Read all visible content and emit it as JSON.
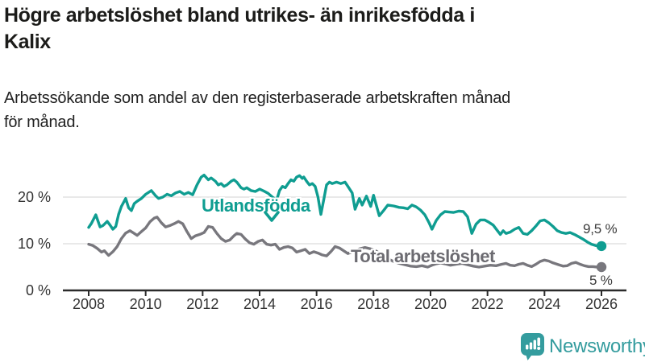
{
  "header": {
    "title_line1": "Högre arbetslöshet bland utrikes- än inrikesfödda i",
    "title_line2": "Kalix",
    "subtitle_line1": "Arbetssökande som andel av den registerbaserade arbetskraften månad",
    "subtitle_line2": "för månad."
  },
  "chart_data": {
    "type": "line",
    "title": "Högre arbetslöshet bland utrikes- än inrikesfödda i Kalix",
    "subtitle": "Arbetssökande som andel av den registerbaserade arbetskraften månad för månad.",
    "xlabel": "",
    "ylabel": "",
    "xlim": [
      2007.1,
      2026.9
    ],
    "ylim": [
      0,
      27
    ],
    "grid": "horizontal-y",
    "legend_position": "inline-labels",
    "x_ticks": [
      2008,
      2010,
      2012,
      2014,
      2016,
      2018,
      2020,
      2022,
      2024,
      2026
    ],
    "y_ticks": [
      0,
      10,
      20
    ],
    "y_tick_labels": [
      "0 %",
      "10 %",
      "20 %"
    ],
    "colors": {
      "utlandsfodda": "#0f9d91",
      "total": "#78777d",
      "gridline": "#e2e2e2",
      "axis": "#2b2b2b",
      "tick_text": "#333333"
    },
    "series": [
      {
        "name": "Utlandsfödda",
        "color": "#0f9d91",
        "end_label": "9,5 %",
        "end_value": 9.5,
        "points": [
          [
            2008.0,
            13.5
          ],
          [
            2008.1,
            14.4
          ],
          [
            2008.25,
            16.2
          ],
          [
            2008.4,
            13.6
          ],
          [
            2008.5,
            13.9
          ],
          [
            2008.65,
            14.8
          ],
          [
            2008.75,
            14.0
          ],
          [
            2008.85,
            13.1
          ],
          [
            2008.95,
            13.7
          ],
          [
            2009.05,
            16.3
          ],
          [
            2009.15,
            18.0
          ],
          [
            2009.3,
            19.7
          ],
          [
            2009.4,
            17.7
          ],
          [
            2009.5,
            17.1
          ],
          [
            2009.6,
            18.6
          ],
          [
            2009.7,
            19.1
          ],
          [
            2009.85,
            19.7
          ],
          [
            2010.0,
            20.6
          ],
          [
            2010.2,
            21.4
          ],
          [
            2010.35,
            20.3
          ],
          [
            2010.45,
            19.7
          ],
          [
            2010.6,
            20.0
          ],
          [
            2010.75,
            20.6
          ],
          [
            2010.9,
            20.3
          ],
          [
            2011.05,
            20.9
          ],
          [
            2011.2,
            21.2
          ],
          [
            2011.35,
            20.6
          ],
          [
            2011.5,
            21.0
          ],
          [
            2011.65,
            20.5
          ],
          [
            2011.8,
            22.6
          ],
          [
            2011.95,
            24.3
          ],
          [
            2012.05,
            24.7
          ],
          [
            2012.2,
            23.7
          ],
          [
            2012.3,
            24.1
          ],
          [
            2012.45,
            23.4
          ],
          [
            2012.55,
            22.6
          ],
          [
            2012.65,
            22.9
          ],
          [
            2012.75,
            22.3
          ],
          [
            2012.85,
            22.6
          ],
          [
            2013.0,
            23.4
          ],
          [
            2013.1,
            23.7
          ],
          [
            2013.2,
            23.2
          ],
          [
            2013.35,
            22.0
          ],
          [
            2013.45,
            21.7
          ],
          [
            2013.55,
            22.0
          ],
          [
            2013.7,
            21.4
          ],
          [
            2013.85,
            21.2
          ],
          [
            2014.0,
            21.7
          ],
          [
            2014.15,
            21.3
          ],
          [
            2014.3,
            20.8
          ],
          [
            2014.45,
            20.0
          ],
          [
            2014.6,
            19.4
          ],
          [
            2014.7,
            21.4
          ],
          [
            2014.8,
            22.3
          ],
          [
            2014.9,
            22.0
          ],
          [
            2015.0,
            22.9
          ],
          [
            2015.1,
            23.7
          ],
          [
            2015.2,
            23.4
          ],
          [
            2015.3,
            24.3
          ],
          [
            2015.4,
            24.6
          ],
          [
            2015.5,
            24.0
          ],
          [
            2015.55,
            24.3
          ],
          [
            2015.65,
            23.4
          ],
          [
            2015.75,
            22.6
          ],
          [
            2015.85,
            22.9
          ],
          [
            2015.95,
            22.3
          ],
          [
            2016.05,
            20.0
          ],
          [
            2016.15,
            16.3
          ],
          [
            2016.25,
            19.4
          ],
          [
            2016.35,
            22.6
          ],
          [
            2016.45,
            23.2
          ],
          [
            2016.55,
            22.9
          ],
          [
            2016.7,
            23.2
          ],
          [
            2016.85,
            22.9
          ],
          [
            2017.0,
            23.2
          ],
          [
            2017.1,
            22.3
          ],
          [
            2017.25,
            20.9
          ],
          [
            2017.35,
            17.4
          ],
          [
            2017.5,
            19.7
          ],
          [
            2017.6,
            18.3
          ],
          [
            2017.75,
            20.2
          ],
          [
            2017.9,
            18.0
          ],
          [
            2018.0,
            20.4
          ],
          [
            2018.2,
            16.0
          ],
          [
            2018.35,
            17.1
          ],
          [
            2018.5,
            18.3
          ],
          [
            2018.7,
            18.1
          ],
          [
            2018.9,
            17.8
          ],
          [
            2019.05,
            17.7
          ],
          [
            2019.2,
            17.5
          ],
          [
            2019.35,
            18.3
          ],
          [
            2019.5,
            17.9
          ],
          [
            2019.65,
            17.2
          ],
          [
            2019.8,
            16.2
          ],
          [
            2019.95,
            14.5
          ],
          [
            2020.05,
            13.1
          ],
          [
            2020.2,
            15.0
          ],
          [
            2020.35,
            16.2
          ],
          [
            2020.5,
            16.9
          ],
          [
            2020.65,
            16.8
          ],
          [
            2020.8,
            16.7
          ],
          [
            2021.0,
            17.0
          ],
          [
            2021.15,
            16.9
          ],
          [
            2021.3,
            15.8
          ],
          [
            2021.45,
            12.2
          ],
          [
            2021.6,
            14.2
          ],
          [
            2021.75,
            15.1
          ],
          [
            2021.9,
            15.1
          ],
          [
            2022.05,
            14.6
          ],
          [
            2022.2,
            14.0
          ],
          [
            2022.35,
            12.8
          ],
          [
            2022.45,
            12.0
          ],
          [
            2022.55,
            12.8
          ],
          [
            2022.65,
            12.2
          ],
          [
            2022.8,
            12.5
          ],
          [
            2022.95,
            13.1
          ],
          [
            2023.1,
            13.5
          ],
          [
            2023.25,
            12.2
          ],
          [
            2023.4,
            12.0
          ],
          [
            2023.55,
            12.8
          ],
          [
            2023.7,
            13.8
          ],
          [
            2023.85,
            14.9
          ],
          [
            2024.0,
            15.1
          ],
          [
            2024.15,
            14.5
          ],
          [
            2024.3,
            13.7
          ],
          [
            2024.45,
            12.8
          ],
          [
            2024.6,
            12.4
          ],
          [
            2024.75,
            12.2
          ],
          [
            2024.9,
            12.4
          ],
          [
            2025.05,
            12.0
          ],
          [
            2025.2,
            11.5
          ],
          [
            2025.35,
            11.0
          ],
          [
            2025.5,
            10.4
          ],
          [
            2025.65,
            9.9
          ],
          [
            2025.8,
            9.6
          ],
          [
            2026.0,
            9.5
          ]
        ]
      },
      {
        "name": "Total arbetslöshet",
        "color": "#78777d",
        "end_label": "5 %",
        "end_value": 5,
        "points": [
          [
            2008.0,
            9.9
          ],
          [
            2008.15,
            9.6
          ],
          [
            2008.3,
            9.0
          ],
          [
            2008.45,
            8.2
          ],
          [
            2008.55,
            8.5
          ],
          [
            2008.7,
            7.5
          ],
          [
            2008.85,
            8.3
          ],
          [
            2009.0,
            9.4
          ],
          [
            2009.15,
            11.1
          ],
          [
            2009.3,
            12.3
          ],
          [
            2009.45,
            12.8
          ],
          [
            2009.6,
            12.2
          ],
          [
            2009.7,
            11.8
          ],
          [
            2009.85,
            12.6
          ],
          [
            2010.0,
            13.4
          ],
          [
            2010.15,
            14.7
          ],
          [
            2010.3,
            15.5
          ],
          [
            2010.4,
            15.7
          ],
          [
            2010.55,
            14.5
          ],
          [
            2010.7,
            13.6
          ],
          [
            2010.85,
            13.9
          ],
          [
            2011.0,
            14.3
          ],
          [
            2011.15,
            14.8
          ],
          [
            2011.3,
            14.3
          ],
          [
            2011.45,
            12.6
          ],
          [
            2011.6,
            11.1
          ],
          [
            2011.75,
            11.7
          ],
          [
            2011.9,
            12.0
          ],
          [
            2012.05,
            12.4
          ],
          [
            2012.2,
            13.7
          ],
          [
            2012.35,
            13.5
          ],
          [
            2012.5,
            12.2
          ],
          [
            2012.65,
            11.1
          ],
          [
            2012.8,
            10.5
          ],
          [
            2012.95,
            10.8
          ],
          [
            2013.1,
            11.7
          ],
          [
            2013.2,
            12.2
          ],
          [
            2013.35,
            12.0
          ],
          [
            2013.5,
            11.0
          ],
          [
            2013.65,
            10.2
          ],
          [
            2013.8,
            9.9
          ],
          [
            2013.95,
            10.5
          ],
          [
            2014.1,
            10.8
          ],
          [
            2014.25,
            9.9
          ],
          [
            2014.4,
            9.7
          ],
          [
            2014.55,
            9.9
          ],
          [
            2014.7,
            8.8
          ],
          [
            2014.85,
            9.2
          ],
          [
            2015.0,
            9.4
          ],
          [
            2015.15,
            9.1
          ],
          [
            2015.3,
            8.2
          ],
          [
            2015.45,
            8.5
          ],
          [
            2015.6,
            8.8
          ],
          [
            2015.75,
            7.9
          ],
          [
            2015.9,
            8.3
          ],
          [
            2016.05,
            8.0
          ],
          [
            2016.2,
            7.6
          ],
          [
            2016.35,
            7.4
          ],
          [
            2016.5,
            8.3
          ],
          [
            2016.65,
            9.4
          ],
          [
            2016.8,
            9.1
          ],
          [
            2016.95,
            8.5
          ],
          [
            2017.1,
            7.9
          ],
          [
            2017.3,
            8.4
          ],
          [
            2017.5,
            8.9
          ],
          [
            2017.7,
            9.2
          ],
          [
            2017.9,
            8.9
          ],
          [
            2018.1,
            8.4
          ],
          [
            2018.3,
            7.6
          ],
          [
            2018.5,
            6.8
          ],
          [
            2018.7,
            6.2
          ],
          [
            2018.9,
            5.8
          ],
          [
            2019.1,
            5.5
          ],
          [
            2019.3,
            5.2
          ],
          [
            2019.5,
            5.1
          ],
          [
            2019.7,
            5.3
          ],
          [
            2019.9,
            5.0
          ],
          [
            2020.05,
            5.4
          ],
          [
            2020.2,
            5.7
          ],
          [
            2020.35,
            5.9
          ],
          [
            2020.5,
            5.7
          ],
          [
            2020.7,
            5.4
          ],
          [
            2020.9,
            5.6
          ],
          [
            2021.1,
            5.8
          ],
          [
            2021.3,
            5.5
          ],
          [
            2021.5,
            5.2
          ],
          [
            2021.7,
            5.0
          ],
          [
            2021.9,
            5.2
          ],
          [
            2022.1,
            5.4
          ],
          [
            2022.3,
            5.3
          ],
          [
            2022.5,
            5.6
          ],
          [
            2022.65,
            5.8
          ],
          [
            2022.8,
            5.4
          ],
          [
            2022.95,
            5.3
          ],
          [
            2023.1,
            5.6
          ],
          [
            2023.25,
            5.8
          ],
          [
            2023.4,
            5.4
          ],
          [
            2023.55,
            5.1
          ],
          [
            2023.7,
            5.6
          ],
          [
            2023.85,
            6.2
          ],
          [
            2024.0,
            6.5
          ],
          [
            2024.15,
            6.3
          ],
          [
            2024.3,
            5.9
          ],
          [
            2024.5,
            5.5
          ],
          [
            2024.65,
            5.2
          ],
          [
            2024.8,
            5.3
          ],
          [
            2024.95,
            5.8
          ],
          [
            2025.1,
            6.0
          ],
          [
            2025.25,
            5.6
          ],
          [
            2025.4,
            5.3
          ],
          [
            2025.55,
            5.1
          ],
          [
            2025.7,
            5.1
          ],
          [
            2025.85,
            5.0
          ],
          [
            2026.0,
            5.0
          ]
        ]
      }
    ]
  },
  "footer": {
    "brand": "Newsworthy",
    "brand_color": "#349c9e",
    "logo_icon": "speech-bubble-bar-chart-icon"
  }
}
